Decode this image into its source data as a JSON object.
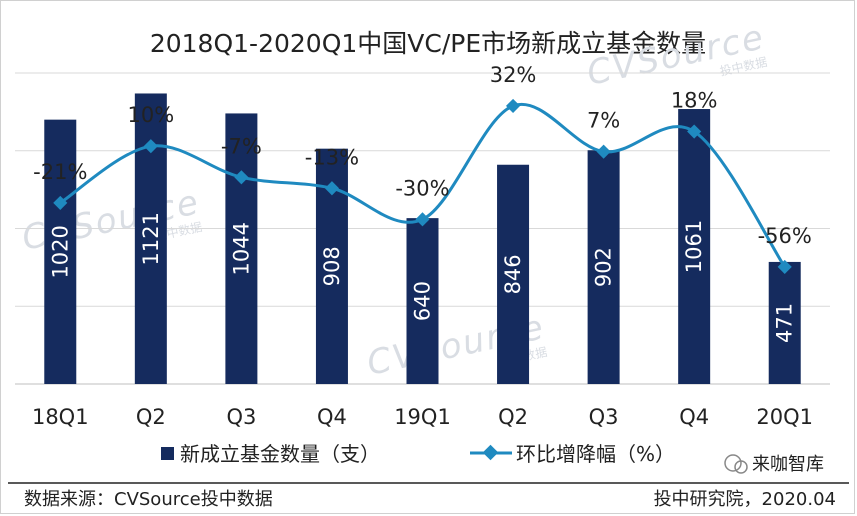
{
  "chart_data": {
    "type": "bar",
    "title": "2018Q1-2020Q1中国VC/PE市场新成立基金数量",
    "categories": [
      "18Q1",
      "Q2",
      "Q3",
      "Q4",
      "19Q1",
      "Q2",
      "Q3",
      "Q4",
      "20Q1"
    ],
    "series": [
      {
        "name": "新成立基金数量（支）",
        "type": "bar",
        "values": [
          1020,
          1121,
          1044,
          908,
          640,
          846,
          902,
          1061,
          471
        ]
      },
      {
        "name": "环比增降幅（%）",
        "type": "line",
        "values": [
          -21,
          10,
          -7,
          -13,
          -30,
          32,
          7,
          18,
          -56
        ]
      }
    ],
    "bar_ylim": [
      0,
      1200
    ],
    "line_ylim": [
      -120,
      50
    ],
    "grid": true,
    "legend_position": "bottom",
    "colors": {
      "bar": "#152b5e",
      "line": "#1f8ac0",
      "grid": "#d9d9d9"
    }
  },
  "watermark": "CVSource",
  "watermark_sub": "投中数据",
  "footer": {
    "source": "数据来源：CVSource投中数据",
    "credit": "投中研究院，2020.04",
    "brand": "来咖智库"
  }
}
